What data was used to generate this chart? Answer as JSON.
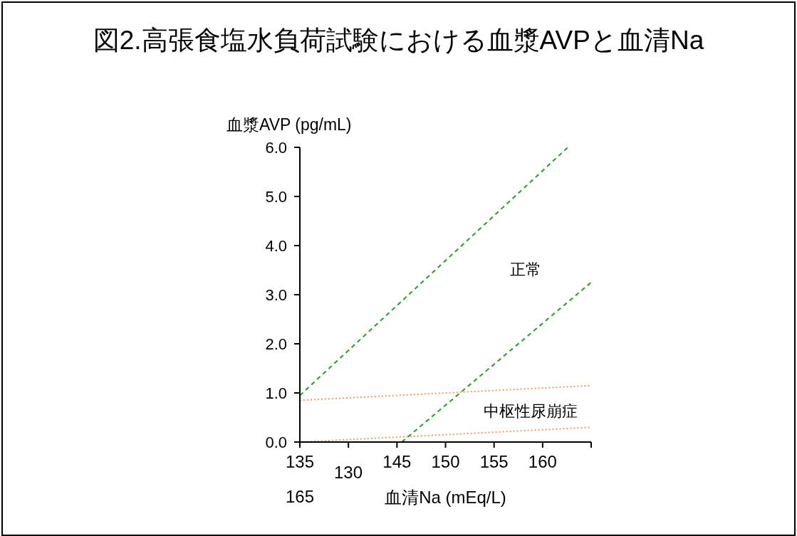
{
  "chart_data": {
    "type": "line",
    "title": "図2.高張食塩水負荷試験における血漿AVPと血清Na",
    "xlabel": "血清Na (mEq/L)",
    "ylabel": "血漿AVP (pg/mL)",
    "xlim": [
      135,
      165
    ],
    "xticks": [
      135,
      {
        "value": 140,
        "label": null
      },
      145,
      150,
      155,
      160,
      {
        "value": 165,
        "label": null
      }
    ],
    "ylim": [
      0,
      6
    ],
    "yticks": [
      {
        "value": 0,
        "label": "0.0"
      },
      {
        "value": 1,
        "label": "1.0"
      },
      {
        "value": 2,
        "label": "2.0"
      },
      {
        "value": 3,
        "label": "3.0"
      },
      {
        "value": 4,
        "label": "4.0"
      },
      {
        "value": 5,
        "label": "5.0"
      },
      {
        "value": 6,
        "label": "6.0"
      }
    ],
    "grid": false,
    "series": [
      {
        "color": "#2a9a2a",
        "line_style": "dashed",
        "x": [
          135,
          162.6
        ],
        "values": [
          0.95,
          6.0
        ]
      },
      {
        "color": "#2a9a2a",
        "line_style": "dashed",
        "x": [
          145.5,
          165
        ],
        "values": [
          0,
          3.25
        ]
      },
      {
        "color": "#f79a5a",
        "line_style": "dotted",
        "x": [
          135,
          165
        ],
        "values": [
          0.85,
          1.15
        ]
      },
      {
        "color": "#f79a5a",
        "line_style": "dotted",
        "x": [
          135,
          165
        ],
        "values": [
          0,
          0.3
        ]
      }
    ],
    "annotations": [
      "正常",
      "中枢性尿崩症",
      "130",
      "165"
    ]
  }
}
